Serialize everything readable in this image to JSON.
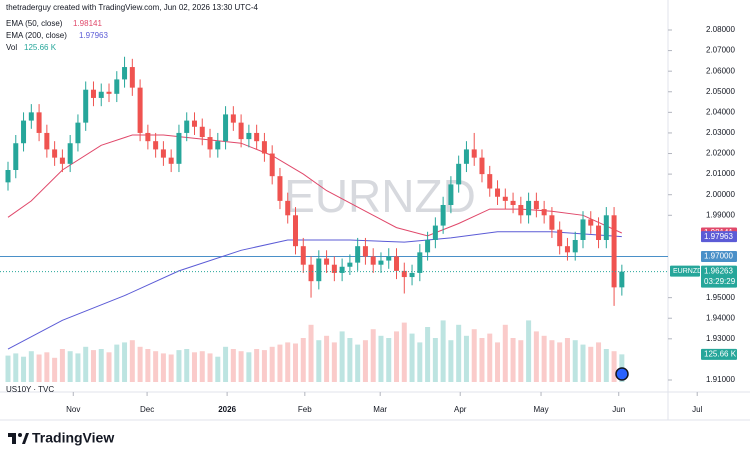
{
  "chart_data": {
    "type": "candlestick",
    "attribution": "thetraderguy created with TradingView.com, Jun 02, 2026 13:30 UTC-4",
    "watermark": "EURNZD",
    "pane_label": "US10Y · TVC",
    "brand": "TradingView",
    "up_color": "#26a69a",
    "down_color": "#ef5350",
    "xlim": [
      -1.03,
      84.94
    ],
    "xticks": [
      {
        "value": 8.4,
        "label": "Nov"
      },
      {
        "value": 17.9,
        "label": "Dec"
      },
      {
        "value": 28.2,
        "label": "2026"
      },
      {
        "value": 38.2,
        "label": "Feb"
      },
      {
        "value": 47.9,
        "label": "Mar"
      },
      {
        "value": 58.2,
        "label": "Apr"
      },
      {
        "value": 68.6,
        "label": "May"
      },
      {
        "value": 78.6,
        "label": "Jun"
      },
      {
        "value": 88.7,
        "label": "Jul"
      }
    ],
    "ylim": [
      1.90417,
      2.09457
    ],
    "yticks": [
      {
        "value": 2.08,
        "label": "2.08000"
      },
      {
        "value": 2.07,
        "label": "2.07000"
      },
      {
        "value": 2.06,
        "label": "2.06000"
      },
      {
        "value": 2.05,
        "label": "2.05000"
      },
      {
        "value": 2.04,
        "label": "2.04000"
      },
      {
        "value": 2.03,
        "label": "2.03000"
      },
      {
        "value": 2.02,
        "label": "2.02000"
      },
      {
        "value": 2.01,
        "label": "2.01000"
      },
      {
        "value": 2.0,
        "label": "2.00000"
      },
      {
        "value": 1.99,
        "label": "1.99000"
      },
      {
        "value": 1.95,
        "label": "1.95000"
      },
      {
        "value": 1.94,
        "label": "1.94000"
      },
      {
        "value": 1.93,
        "label": "1.93000"
      },
      {
        "value": 1.91,
        "label": "1.91000"
      }
    ],
    "open": [
      2.006,
      2.012,
      2.025,
      2.036,
      2.04,
      2.03,
      2.022,
      2.018,
      2.015,
      2.025,
      2.035,
      2.051,
      2.047,
      2.05,
      2.049,
      2.056,
      2.062,
      2.052,
      2.03,
      2.026,
      2.022,
      2.018,
      2.015,
      2.03,
      2.036,
      2.033,
      2.028,
      2.022,
      2.026,
      2.039,
      2.035,
      2.027,
      2.03,
      2.026,
      2.02,
      2.009,
      1.997,
      1.99,
      1.975,
      1.966,
      1.958,
      1.969,
      1.966,
      1.962,
      1.965,
      1.967,
      1.975,
      1.97,
      1.966,
      1.968,
      1.97,
      1.963,
      1.96,
      1.962,
      1.972,
      1.978,
      1.985,
      1.995,
      2.005,
      2.015,
      2.022,
      2.018,
      2.01,
      2.003,
      1.999,
      1.997,
      1.995,
      1.99,
      1.997,
      1.993,
      1.99,
      1.983,
      1.975,
      1.972,
      1.978,
      1.988,
      1.985,
      1.978,
      1.99,
      1.955
    ],
    "high": [
      2.016,
      2.029,
      2.04,
      2.044,
      2.044,
      2.034,
      2.026,
      2.022,
      2.029,
      2.039,
      2.055,
      2.055,
      2.054,
      2.054,
      2.06,
      2.067,
      2.066,
      2.056,
      2.034,
      2.03,
      2.026,
      2.022,
      2.034,
      2.04,
      2.04,
      2.037,
      2.032,
      2.03,
      2.043,
      2.043,
      2.039,
      2.034,
      2.034,
      2.03,
      2.024,
      2.013,
      2.001,
      1.994,
      1.979,
      1.97,
      1.973,
      1.973,
      1.97,
      1.969,
      1.971,
      1.979,
      1.979,
      1.974,
      1.972,
      1.974,
      1.974,
      1.967,
      1.966,
      1.976,
      1.982,
      1.989,
      1.999,
      2.009,
      2.019,
      2.026,
      2.03,
      2.022,
      2.014,
      2.007,
      2.003,
      2.001,
      1.999,
      2.001,
      2.001,
      1.997,
      1.994,
      1.987,
      1.979,
      1.982,
      1.992,
      1.992,
      1.989,
      1.994,
      1.994,
      1.966
    ],
    "low": [
      2.002,
      2.008,
      2.021,
      2.032,
      2.026,
      2.018,
      2.014,
      2.011,
      2.011,
      2.021,
      2.031,
      2.043,
      2.043,
      2.045,
      2.045,
      2.052,
      2.048,
      2.026,
      2.022,
      2.018,
      2.014,
      2.011,
      2.011,
      2.026,
      2.029,
      2.024,
      2.018,
      2.018,
      2.022,
      2.031,
      2.023,
      2.023,
      2.022,
      2.016,
      2.005,
      1.993,
      1.986,
      1.971,
      1.962,
      1.95,
      1.954,
      1.962,
      1.958,
      1.958,
      1.961,
      1.963,
      1.966,
      1.962,
      1.962,
      1.964,
      1.959,
      1.952,
      1.956,
      1.958,
      1.968,
      1.974,
      1.981,
      1.991,
      2.001,
      2.011,
      2.014,
      2.006,
      1.999,
      1.995,
      1.993,
      1.991,
      1.986,
      1.986,
      1.989,
      1.986,
      1.979,
      1.971,
      1.968,
      1.968,
      1.974,
      1.981,
      1.974,
      1.974,
      1.946,
      1.951
    ],
    "close": [
      2.012,
      2.025,
      2.036,
      2.04,
      2.03,
      2.022,
      2.018,
      2.015,
      2.025,
      2.035,
      2.051,
      2.047,
      2.05,
      2.049,
      2.056,
      2.062,
      2.052,
      2.03,
      2.026,
      2.022,
      2.018,
      2.015,
      2.03,
      2.036,
      2.033,
      2.028,
      2.022,
      2.026,
      2.039,
      2.035,
      2.027,
      2.03,
      2.026,
      2.02,
      2.009,
      1.997,
      1.99,
      1.975,
      1.966,
      1.958,
      1.969,
      1.966,
      1.962,
      1.965,
      1.967,
      1.975,
      1.97,
      1.966,
      1.968,
      1.97,
      1.963,
      1.96,
      1.962,
      1.972,
      1.978,
      1.985,
      1.995,
      2.005,
      2.015,
      2.022,
      2.018,
      2.01,
      2.003,
      1.999,
      1.997,
      1.995,
      1.99,
      1.997,
      1.993,
      1.99,
      1.983,
      1.975,
      1.972,
      1.978,
      1.988,
      1.985,
      1.978,
      1.99,
      1.955,
      1.96263
    ],
    "volume": [
      120,
      130,
      115,
      140,
      125,
      135,
      110,
      150,
      140,
      130,
      160,
      145,
      150,
      135,
      170,
      180,
      190,
      160,
      150,
      140,
      130,
      125,
      145,
      150,
      135,
      140,
      130,
      115,
      160,
      150,
      140,
      135,
      150,
      145,
      160,
      170,
      180,
      175,
      200,
      260,
      190,
      210,
      180,
      230,
      200,
      170,
      190,
      240,
      210,
      200,
      230,
      270,
      220,
      180,
      250,
      200,
      280,
      190,
      260,
      210,
      240,
      200,
      220,
      180,
      260,
      200,
      190,
      280,
      230,
      210,
      190,
      180,
      200,
      190,
      170,
      160,
      180,
      150,
      140,
      125.66
    ],
    "volume_legend": {
      "name": "Vol",
      "value": {
        "value": 125.66,
        "label": "125.66 K"
      }
    },
    "overlays": [
      {
        "name": "EMA (50, close)",
        "color": "#e0486a",
        "last": 1.98141,
        "x": [
          0,
          3,
          7,
          12,
          16,
          20,
          25,
          30,
          34,
          38,
          41,
          46,
          50,
          54,
          58,
          62,
          66,
          70,
          74,
          79
        ],
        "values": [
          1.989,
          1.997,
          2.012,
          2.024,
          2.029,
          2.029,
          2.027,
          2.025,
          2.019,
          2.01,
          2.002,
          1.992,
          1.984,
          1.98,
          1.986,
          1.993,
          1.993,
          1.992,
          1.99,
          1.98141
        ]
      },
      {
        "name": "EMA (200, close)",
        "color": "#5b5bd6",
        "last": 1.97963,
        "x": [
          0,
          7,
          15,
          22,
          30,
          36,
          44,
          51,
          57,
          63,
          70,
          79
        ],
        "values": [
          1.925,
          1.939,
          1.951,
          1.963,
          1.973,
          1.978,
          1.978,
          1.977,
          1.979,
          1.982,
          1.982,
          1.97963
        ]
      }
    ],
    "level": {
      "value": 1.97,
      "label": "1.97000",
      "color": "#4a90c8"
    },
    "last_price": {
      "symbol": "EURNZD",
      "countdown": "03:29:29",
      "color": "#26a69a"
    }
  }
}
